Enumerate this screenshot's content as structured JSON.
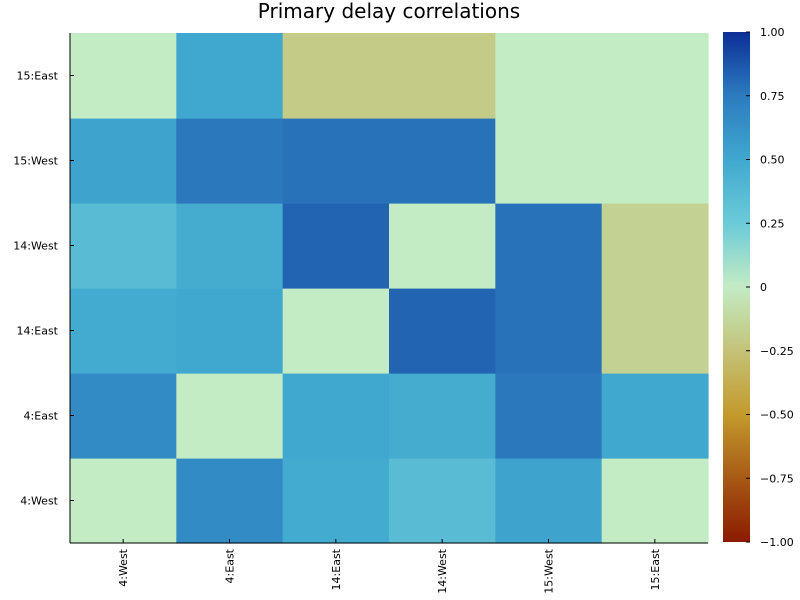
{
  "chart_data": {
    "type": "heatmap",
    "title": "Primary delay correlations",
    "xlabel": "",
    "ylabel": "",
    "x_labels": [
      "4:West",
      "4:East",
      "14:East",
      "14:West",
      "15:West",
      "15:East"
    ],
    "y_labels": [
      "4:West",
      "4:East",
      "14:East",
      "14:West",
      "15:West",
      "15:East"
    ],
    "values": [
      [
        0.0,
        0.66,
        0.48,
        0.36,
        0.52,
        0.0
      ],
      [
        0.66,
        0.0,
        0.5,
        0.47,
        0.76,
        0.5
      ],
      [
        0.48,
        0.5,
        0.0,
        0.83,
        0.78,
        -0.16
      ],
      [
        0.36,
        0.47,
        0.83,
        0.0,
        0.78,
        -0.16
      ],
      [
        0.52,
        0.76,
        0.78,
        0.78,
        0.0,
        0.0
      ],
      [
        0.0,
        0.5,
        -0.2,
        -0.2,
        0.0,
        0.0
      ]
    ],
    "colorbar": {
      "range": [
        -1.0,
        1.0
      ],
      "ticks": [
        "1.00",
        "0.75",
        "0.50",
        "0.25",
        "0",
        "−0.25",
        "−0.50",
        "−0.75",
        "−1.00"
      ]
    },
    "grid": false,
    "colors": {
      "min": "#8a1a00",
      "neg_mid": "#c49a2c",
      "zero": "#c3ebc4",
      "pos_low": "#6ccbd8",
      "pos_mid": "#40a8cf",
      "pos_high": "#2c7bbf",
      "max": "#0c2f96"
    }
  }
}
